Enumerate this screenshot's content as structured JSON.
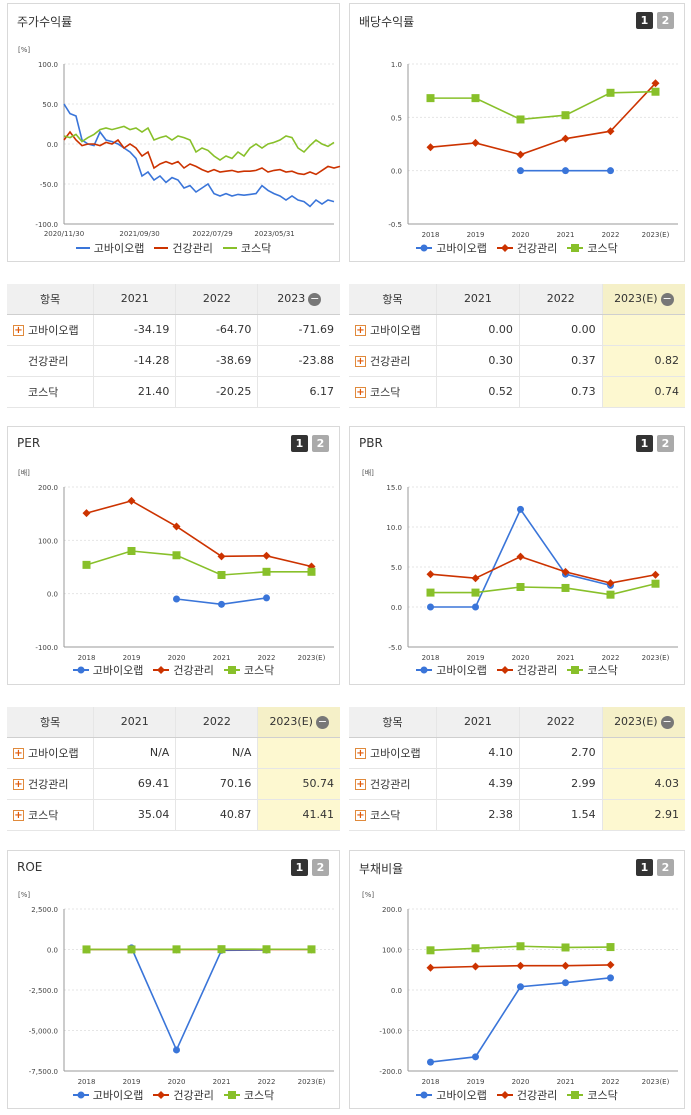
{
  "colors": {
    "gobio": "#3a75d9",
    "geongang": "#cc3300",
    "kosdaq": "#88c02a"
  },
  "series_names": [
    "고바이오랩",
    "건강관리",
    "코스닥"
  ],
  "panels": {
    "stock": {
      "title": "주가수익률"
    },
    "dividend": {
      "title": "배당수익률",
      "btn1": "1",
      "btn2": "2"
    },
    "per": {
      "title": "PER",
      "btn1": "1",
      "btn2": "2"
    },
    "pbr": {
      "title": "PBR",
      "btn1": "1",
      "btn2": "2"
    },
    "roe": {
      "title": "ROE",
      "btn1": "1",
      "btn2": "2"
    },
    "debt": {
      "title": "부채비율",
      "btn1": "1",
      "btn2": "2"
    }
  },
  "tables": {
    "stock": {
      "headers": [
        "항목",
        "2021",
        "2022",
        "2023"
      ],
      "minus": "−",
      "rows": [
        {
          "name": "고바이오랩",
          "plus": true,
          "v": [
            "-34.19",
            "-64.70",
            "-71.69"
          ]
        },
        {
          "name": "건강관리",
          "plus": false,
          "v": [
            "-14.28",
            "-38.69",
            "-23.88"
          ]
        },
        {
          "name": "코스닥",
          "plus": false,
          "v": [
            "21.40",
            "-20.25",
            "6.17"
          ]
        }
      ]
    },
    "dividend": {
      "headers": [
        "항목",
        "2021",
        "2022",
        "2023(E)"
      ],
      "minus": "−",
      "rows": [
        {
          "name": "고바이오랩",
          "plus": true,
          "v": [
            "0.00",
            "0.00",
            ""
          ]
        },
        {
          "name": "건강관리",
          "plus": true,
          "v": [
            "0.30",
            "0.37",
            "0.82"
          ]
        },
        {
          "name": "코스닥",
          "plus": true,
          "v": [
            "0.52",
            "0.73",
            "0.74"
          ]
        }
      ]
    },
    "per": {
      "headers": [
        "항목",
        "2021",
        "2022",
        "2023(E)"
      ],
      "minus": "−",
      "rows": [
        {
          "name": "고바이오랩",
          "plus": true,
          "v": [
            "N/A",
            "N/A",
            ""
          ]
        },
        {
          "name": "건강관리",
          "plus": true,
          "v": [
            "69.41",
            "70.16",
            "50.74"
          ]
        },
        {
          "name": "코스닥",
          "plus": true,
          "v": [
            "35.04",
            "40.87",
            "41.41"
          ]
        }
      ]
    },
    "pbr": {
      "headers": [
        "항목",
        "2021",
        "2022",
        "2023(E)"
      ],
      "minus": "−",
      "rows": [
        {
          "name": "고바이오랩",
          "plus": true,
          "v": [
            "4.10",
            "2.70",
            ""
          ]
        },
        {
          "name": "건강관리",
          "plus": true,
          "v": [
            "4.39",
            "2.99",
            "4.03"
          ]
        },
        {
          "name": "코스닥",
          "plus": true,
          "v": [
            "2.38",
            "1.54",
            "2.91"
          ]
        }
      ]
    }
  },
  "chart_data": [
    {
      "id": "stock",
      "type": "line",
      "unit": "[%]",
      "ylim": [
        -100,
        100
      ],
      "yticks": [
        "100.0",
        "50.0",
        "0.0",
        "-50.0",
        "-100.0"
      ],
      "xticks": [
        "2020/11/30",
        "2021/09/30",
        "2022/07/29",
        "2023/05/31"
      ],
      "series": [
        {
          "name": "고바이오랩",
          "values": [
            50,
            38,
            35,
            5,
            0,
            -2,
            15,
            5,
            3,
            0,
            -5,
            -10,
            -18,
            -40,
            -35,
            -45,
            -40,
            -48,
            -42,
            -45,
            -55,
            -52,
            -60,
            -55,
            -50,
            -62,
            -65,
            -62,
            -65,
            -63,
            -64,
            -63,
            -62,
            -52,
            -58,
            -62,
            -65,
            -70,
            -65,
            -70,
            -72,
            -78,
            -70,
            -75,
            -70,
            -72
          ]
        },
        {
          "name": "건강관리",
          "values": [
            5,
            15,
            5,
            -2,
            0,
            0,
            -2,
            2,
            0,
            5,
            -5,
            0,
            -5,
            -15,
            -10,
            -30,
            -25,
            -22,
            -25,
            -22,
            -30,
            -25,
            -28,
            -32,
            -35,
            -32,
            -35,
            -34,
            -33,
            -35,
            -34,
            -34,
            -33,
            -30,
            -35,
            -33,
            -32,
            -35,
            -34,
            -37,
            -38,
            -35,
            -38,
            -33,
            -28,
            -30,
            -28
          ]
        },
        {
          "name": "코스닥",
          "values": [
            10,
            8,
            12,
            3,
            8,
            12,
            18,
            20,
            18,
            20,
            22,
            18,
            20,
            15,
            20,
            5,
            8,
            10,
            5,
            10,
            8,
            5,
            -10,
            -5,
            -8,
            -15,
            -20,
            -15,
            -18,
            -10,
            -15,
            -5,
            0,
            -5,
            0,
            2,
            5,
            10,
            8,
            -5,
            -10,
            -2,
            5,
            0,
            -3,
            2
          ]
        }
      ]
    },
    {
      "id": "dividend",
      "type": "line",
      "unit": "",
      "ylim": [
        -0.5,
        1.0
      ],
      "yticks": [
        "1.0",
        "0.5",
        "0.0",
        "-0.5"
      ],
      "categories": [
        "2018",
        "2019",
        "2020",
        "2021",
        "2022",
        "2023(E)"
      ],
      "series": [
        {
          "name": "고바이오랩",
          "values": [
            null,
            null,
            0.0,
            0.0,
            0.0,
            null
          ]
        },
        {
          "name": "건강관리",
          "values": [
            0.22,
            0.26,
            0.15,
            0.3,
            0.37,
            0.82
          ]
        },
        {
          "name": "코스닥",
          "values": [
            0.68,
            0.68,
            0.48,
            0.52,
            0.73,
            0.74
          ]
        }
      ]
    },
    {
      "id": "per",
      "type": "line",
      "unit": "[배]",
      "ylim": [
        -100,
        200
      ],
      "yticks": [
        "200.0",
        "100.0",
        "0.0",
        "-100.0"
      ],
      "categories": [
        "2018",
        "2019",
        "2020",
        "2021",
        "2022",
        "2023(E)"
      ],
      "series": [
        {
          "name": "고바이오랩",
          "values": [
            null,
            null,
            -10,
            -20,
            -8,
            null
          ]
        },
        {
          "name": "건강관리",
          "values": [
            151,
            174,
            126,
            70,
            71,
            51
          ]
        },
        {
          "name": "코스닥",
          "values": [
            54,
            80,
            72,
            35,
            41,
            41
          ]
        }
      ]
    },
    {
      "id": "pbr",
      "type": "line",
      "unit": "[배]",
      "ylim": [
        -5,
        15
      ],
      "yticks": [
        "15.0",
        "10.0",
        "5.0",
        "0.0",
        "-5.0"
      ],
      "categories": [
        "2018",
        "2019",
        "2020",
        "2021",
        "2022",
        "2023(E)"
      ],
      "series": [
        {
          "name": "고바이오랩",
          "values": [
            0.0,
            0.0,
            12.2,
            4.1,
            2.7,
            null
          ]
        },
        {
          "name": "건강관리",
          "values": [
            4.1,
            3.6,
            6.3,
            4.39,
            2.99,
            4.03
          ]
        },
        {
          "name": "코스닥",
          "values": [
            1.8,
            1.8,
            2.5,
            2.38,
            1.54,
            2.91
          ]
        }
      ]
    },
    {
      "id": "roe",
      "type": "line",
      "unit": "[%]",
      "ylim": [
        -7500,
        2500
      ],
      "yticks": [
        "2,500.0",
        "0.0",
        "-2,500.0",
        "-5,000.0",
        "-7,500.0"
      ],
      "categories": [
        "2018",
        "2019",
        "2020",
        "2021",
        "2022",
        "2023(E)"
      ],
      "series": [
        {
          "name": "고바이오랩",
          "values": [
            null,
            100,
            -6200,
            -50,
            -30,
            null
          ]
        },
        {
          "name": "건강관리",
          "values": [
            0,
            0,
            0,
            0,
            0,
            0
          ]
        },
        {
          "name": "코스닥",
          "values": [
            5,
            5,
            10,
            20,
            15,
            10
          ]
        }
      ]
    },
    {
      "id": "debt",
      "type": "line",
      "unit": "[%]",
      "ylim": [
        -200,
        200
      ],
      "yticks": [
        "200.0",
        "100.0",
        "0.0",
        "-100.0",
        "-200.0"
      ],
      "categories": [
        "2018",
        "2019",
        "2020",
        "2021",
        "2022",
        "2023(E)"
      ],
      "series": [
        {
          "name": "고바이오랩",
          "values": [
            -178,
            -165,
            8,
            18,
            30,
            null
          ]
        },
        {
          "name": "건강관리",
          "values": [
            55,
            58,
            60,
            60,
            62,
            null
          ]
        },
        {
          "name": "코스닥",
          "values": [
            98,
            103,
            108,
            105,
            106,
            null
          ]
        }
      ]
    }
  ]
}
